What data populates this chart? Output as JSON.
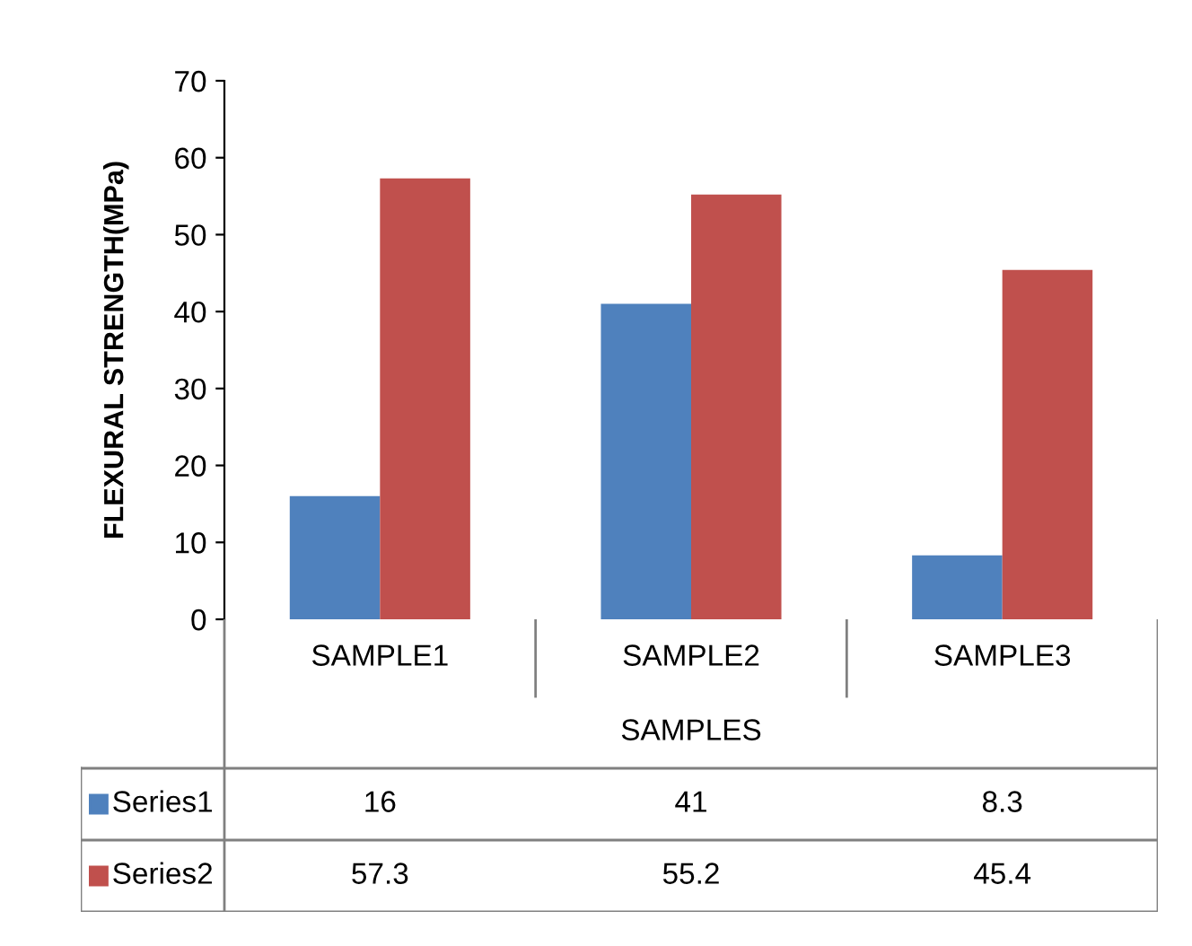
{
  "chart_data": {
    "type": "bar",
    "ylabel": "FLEXURAL STRENGTH(MPa)",
    "xlabel": "SAMPLES",
    "categories": [
      "SAMPLE1",
      "SAMPLE2",
      "SAMPLE3"
    ],
    "series": [
      {
        "name": "Series1",
        "color": "#4f81bd",
        "values": [
          16,
          41,
          8.3
        ]
      },
      {
        "name": "Series2",
        "color": "#c0504d",
        "values": [
          57.3,
          55.2,
          45.4
        ]
      }
    ],
    "ylim": [
      0,
      70
    ],
    "yticks": [
      0,
      10,
      20,
      30,
      40,
      50,
      60,
      70
    ],
    "grid": false,
    "legend": "bottom",
    "data_labels": true
  }
}
